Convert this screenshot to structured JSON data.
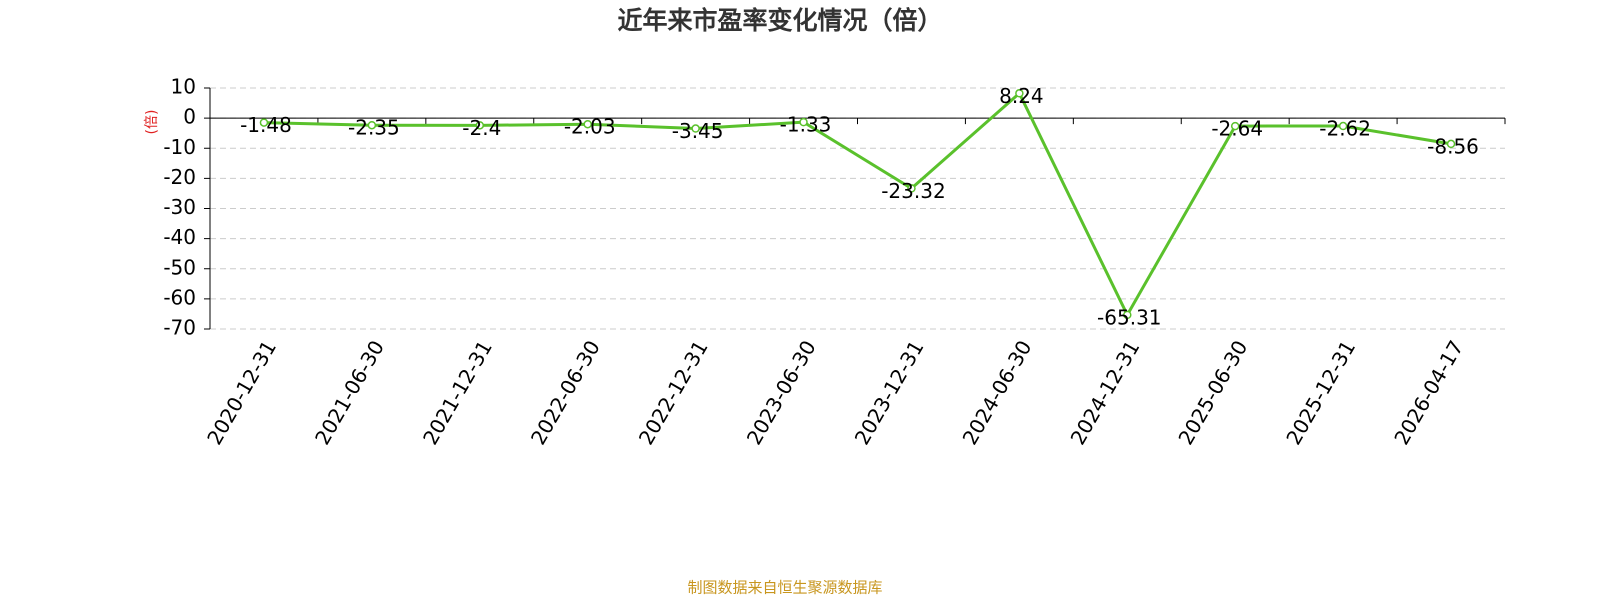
{
  "chart_data": {
    "type": "line",
    "title": "近年来市盈率变化情况（倍）",
    "y_label": "(倍)",
    "source": "制图数据来自恒生聚源数据库",
    "categories": [
      "2020-12-31",
      "2021-06-30",
      "2021-12-31",
      "2022-06-30",
      "2022-12-31",
      "2023-06-30",
      "2023-12-31",
      "2024-06-30",
      "2024-12-31",
      "2025-06-30",
      "2025-12-31",
      "2026-04-17"
    ],
    "series": [
      {
        "name": "市盈率",
        "color": "#5ac12c",
        "values": [
          -1.48,
          -2.35,
          -2.4,
          -2.03,
          -3.45,
          -1.33,
          -23.32,
          8.24,
          -65.31,
          -2.64,
          -2.62,
          -8.56
        ]
      }
    ],
    "ylim": [
      -70,
      10
    ],
    "yticks": [
      -70,
      -60,
      -50,
      -40,
      -30,
      -20,
      -10,
      0,
      10
    ],
    "grid": true
  }
}
